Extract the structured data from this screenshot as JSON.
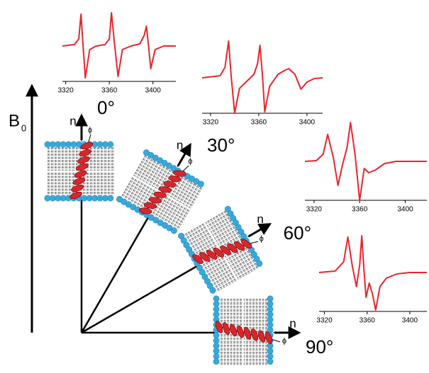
{
  "chart_data": [
    {
      "type": "line",
      "color": "#e8262b",
      "xlim": [
        3317,
        3421
      ],
      "ylim": [
        -55,
        55
      ],
      "xticks": [
        3320,
        3360,
        3400
      ],
      "x": [
        3317,
        3328,
        3332,
        3334,
        3336,
        3338,
        3342,
        3348,
        3356,
        3360,
        3362,
        3365,
        3368,
        3372,
        3380,
        3388,
        3392,
        3394,
        3396,
        3398,
        3402,
        3410,
        3421
      ],
      "values": [
        0,
        2,
        10,
        45,
        0,
        -45,
        -5,
        0,
        2,
        10,
        47,
        0,
        -43,
        -5,
        0,
        3,
        15,
        28,
        0,
        -32,
        -5,
        0,
        0
      ]
    },
    {
      "type": "line",
      "color": "#e8262b",
      "xlim": [
        3313,
        3413
      ],
      "ylim": [
        -55,
        55
      ],
      "xticks": [
        3320,
        3360,
        3400
      ],
      "x": [
        3313,
        3328,
        3332,
        3335,
        3337,
        3340,
        3344,
        3350,
        3356,
        3359,
        3361,
        3363,
        3365,
        3369,
        3376,
        3382,
        3385,
        3390,
        3395,
        3400,
        3406,
        3413
      ],
      "values": [
        0,
        3,
        15,
        52,
        5,
        -50,
        -15,
        -5,
        5,
        20,
        46,
        5,
        -48,
        -12,
        5,
        11,
        13,
        5,
        -16,
        -6,
        -1,
        0
      ]
    },
    {
      "type": "line",
      "color": "#e8262b",
      "xlim": [
        3312,
        3419
      ],
      "ylim": [
        -55,
        55
      ],
      "xticks": [
        3320,
        3360,
        3400
      ],
      "x": [
        3312,
        3322,
        3328,
        3332,
        3337,
        3341,
        3345,
        3349,
        3352,
        3356,
        3360,
        3364,
        3368,
        3374,
        3382,
        3392,
        3419
      ],
      "values": [
        0,
        1,
        10,
        38,
        5,
        -34,
        -5,
        20,
        55,
        10,
        -55,
        -10,
        -16,
        -12,
        -3,
        0,
        0
      ]
    },
    {
      "type": "line",
      "color": "#e8262b",
      "xlim": [
        3315,
        3416
      ],
      "ylim": [
        -55,
        55
      ],
      "xticks": [
        3320,
        3360,
        3400
      ],
      "x": [
        3315,
        3330,
        3338,
        3342,
        3346,
        3350,
        3353,
        3355,
        3357,
        3359,
        3362,
        3365,
        3368,
        3372,
        3378,
        3388,
        3400,
        3416
      ],
      "values": [
        0,
        2,
        15,
        50,
        10,
        -20,
        10,
        52,
        5,
        -35,
        -15,
        -30,
        -53,
        -20,
        -8,
        -2,
        0,
        0
      ]
    }
  ],
  "diagram": {
    "field_label": "B",
    "field_subscript": "0",
    "orientations": [
      {
        "normal": "n",
        "angle": "0°",
        "tilt": "ϕ"
      },
      {
        "normal": "n",
        "angle": "30°",
        "tilt": "ϕ"
      },
      {
        "normal": "n",
        "angle": "60°",
        "tilt": "ϕ"
      },
      {
        "normal": "n",
        "angle": "90°",
        "tilt": "ϕ"
      }
    ]
  }
}
